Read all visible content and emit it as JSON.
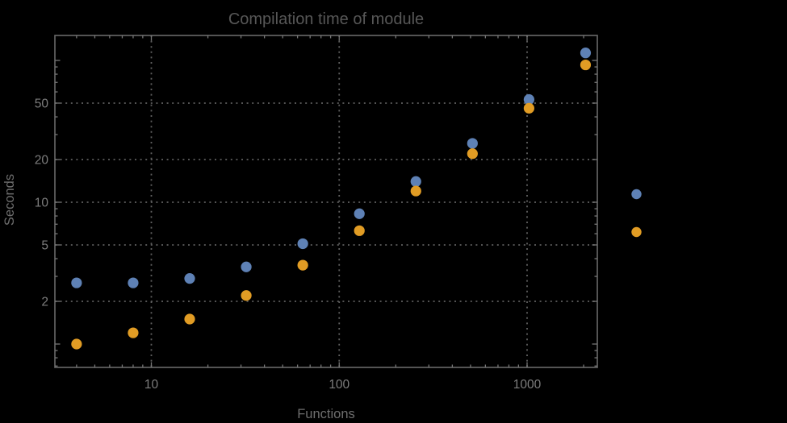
{
  "chart_data": {
    "type": "scatter",
    "title": "Compilation time of module",
    "xlabel": "Functions",
    "ylabel": "Seconds",
    "x_scale": "log",
    "y_scale": "log",
    "xlim": [
      3.07,
      2365
    ],
    "ylim": [
      0.68,
      150
    ],
    "grid": "dotted, at labeled ticks only",
    "x": [
      4,
      8,
      16,
      32,
      64,
      128,
      256,
      512,
      1024,
      2048
    ],
    "series": [
      {
        "name": "blue",
        "color": "#5e81b5",
        "values": [
          2.7,
          2.7,
          2.9,
          3.5,
          5.1,
          8.3,
          14,
          26,
          53,
          113
        ]
      },
      {
        "name": "orange",
        "color": "#e19c24",
        "values": [
          1.0,
          1.2,
          1.5,
          2.2,
          3.6,
          6.3,
          12,
          22,
          46,
          93
        ]
      }
    ],
    "x_tick_labels": [
      "10",
      "100",
      "1000"
    ],
    "x_tick_values": [
      10,
      100,
      1000
    ],
    "y_tick_labels": [
      "2",
      "5",
      "10",
      "20",
      "50"
    ],
    "y_tick_values": [
      2,
      5,
      10,
      20,
      50
    ],
    "legend_position": "right",
    "legend": [
      {
        "label": "",
        "color": "#5e81b5"
      },
      {
        "label": "",
        "color": "#e19c24"
      }
    ]
  },
  "colors": {
    "background": "#000000",
    "frame": "#696969",
    "gridline": "#5f5f5f",
    "tick_label": "#7d7d7d",
    "axis_label": "#6e6e6e",
    "title": "#575757",
    "series_blue": "#5e81b5",
    "series_orange": "#e19c24"
  }
}
